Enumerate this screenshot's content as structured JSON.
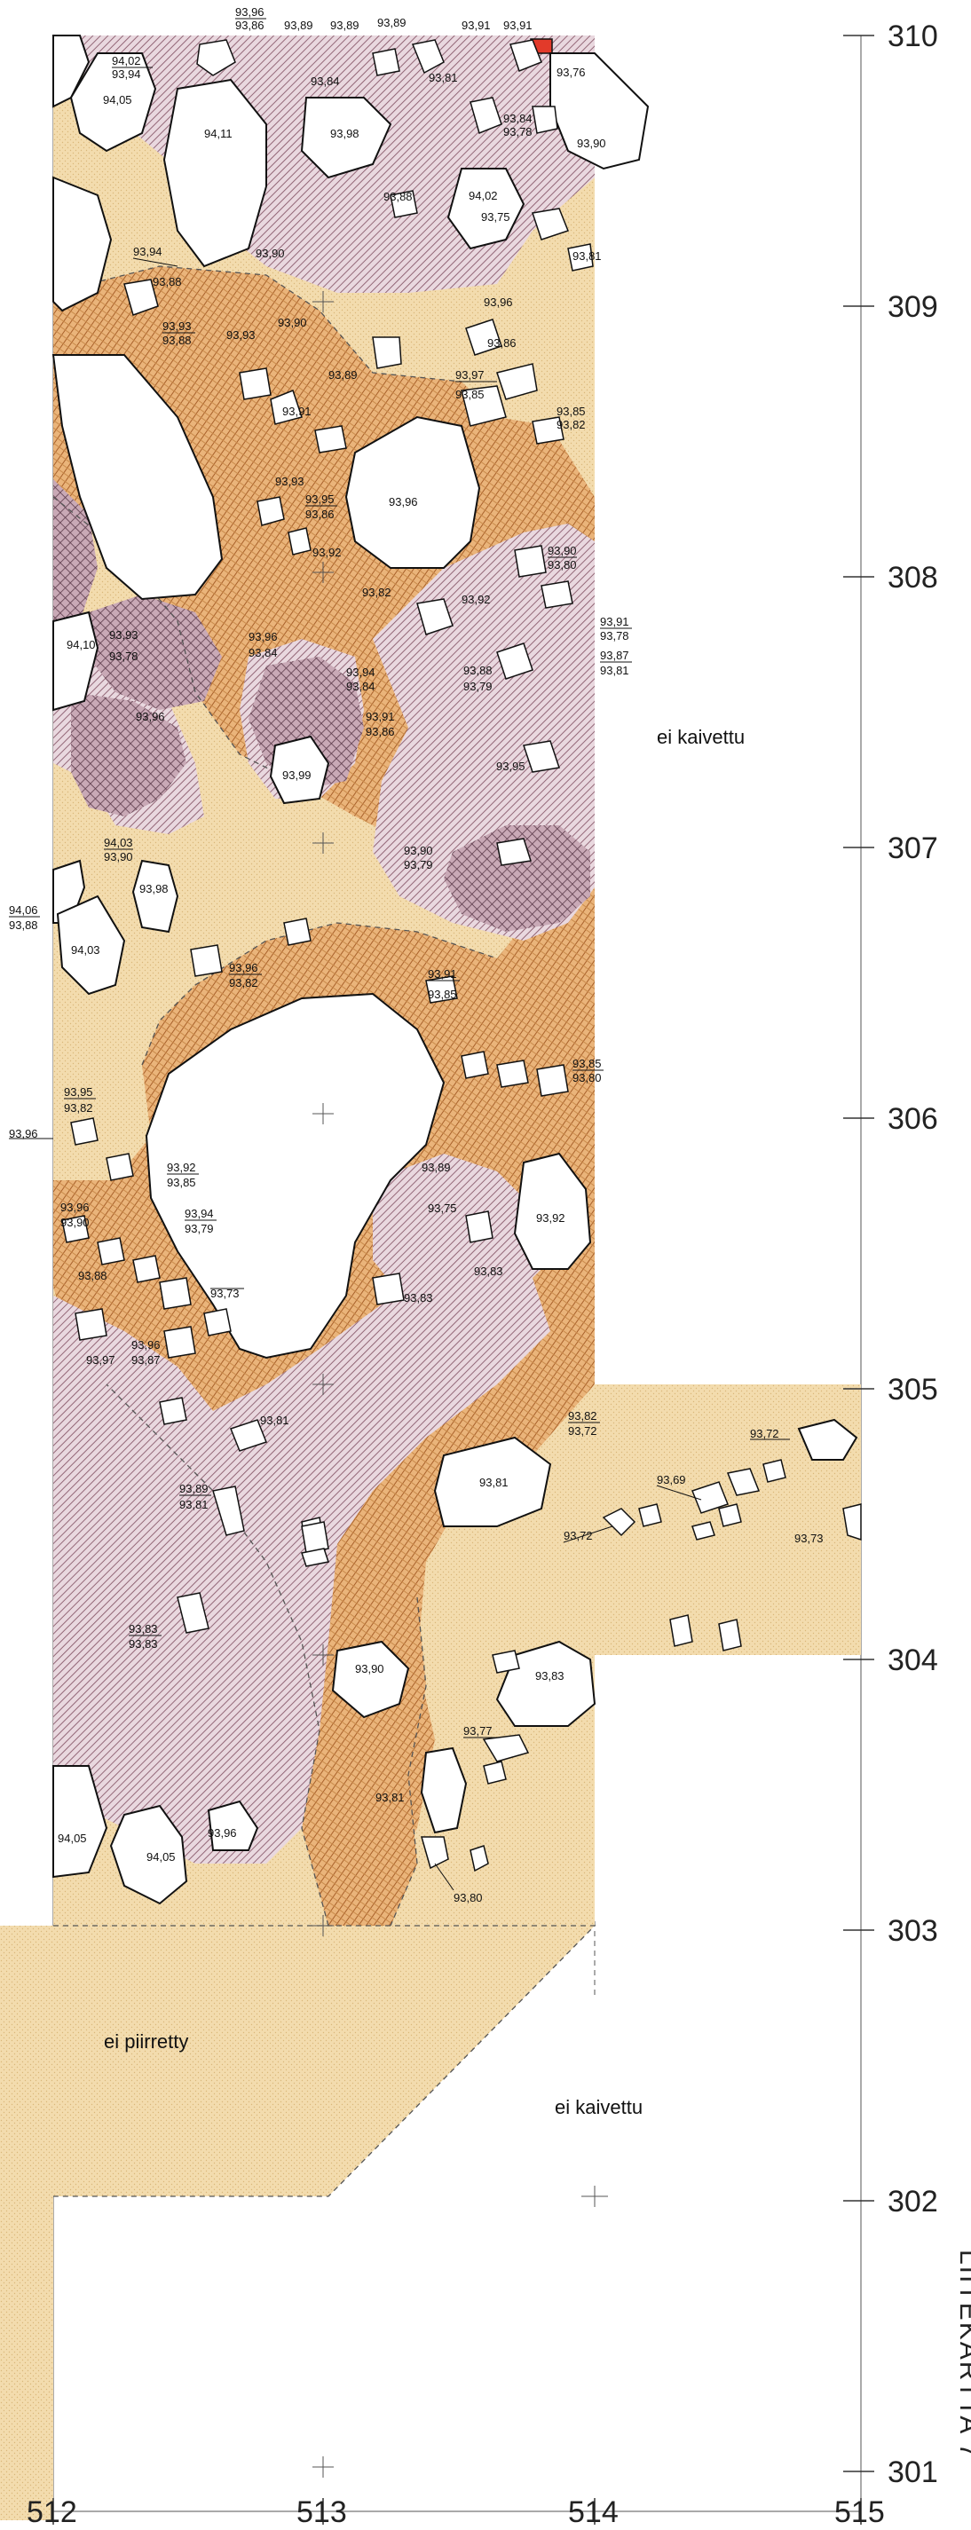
{
  "colors": {
    "sand": "#f3dcae",
    "brown_hatch": "#c98a4a",
    "purple_hatch": "#a37888",
    "dark_crosshatch": "#6f4c5c",
    "red_marker": "#e23a2a"
  },
  "axes": {
    "x_labels": [
      "512",
      "513",
      "514",
      "515"
    ],
    "y_labels": [
      "310",
      "309",
      "308",
      "307",
      "306",
      "305",
      "304",
      "303",
      "302",
      "301"
    ]
  },
  "notes": {
    "ei_kaivettu_top": "ei kaivettu",
    "ei_kaivettu_bottom": "ei kaivettu",
    "ei_piirretty": "ei piirretty",
    "side_title": "LIITEKARTTA 7"
  },
  "elevations": [
    "93,96",
    "93,86",
    "93,89",
    "93,89",
    "93,89",
    "93,91",
    "93,91",
    "94,02",
    "93,94",
    "94,05",
    "93,84",
    "93,81",
    "93,76",
    "94,11",
    "93,98",
    "93,84",
    "93,78",
    "93,90",
    "93,88",
    "94,02",
    "93,75",
    "93,90",
    "93,81",
    "93,94",
    "93,88",
    "93,93",
    "93,88",
    "93,93",
    "93,90",
    "93,96",
    "93,86",
    "93,89",
    "93,97",
    "93,85",
    "93,91",
    "93,85",
    "93,82",
    "93,93",
    "93,95",
    "93,86",
    "93,96",
    "93,92",
    "93,90",
    "93,80",
    "93,92",
    "93,82",
    "94,10",
    "93,93",
    "93,78",
    "93,96",
    "93,84",
    "93,91",
    "93,78",
    "93,94",
    "93,84",
    "93,88",
    "93,79",
    "93,87",
    "93,81",
    "93,96",
    "93,91",
    "93,86",
    "93,99",
    "93,95",
    "94,03",
    "93,90",
    "93,90",
    "93,79",
    "93,98",
    "94,06",
    "93,88",
    "94,03",
    "93,96",
    "93,82",
    "93,91",
    "93,85",
    "93,95",
    "93,82",
    "93,85",
    "93,80",
    "93,96",
    "93,92",
    "93,85",
    "93,94",
    "93,79",
    "93,89",
    "93,75",
    "93,96",
    "93,90",
    "93,92",
    "93,88",
    "93,83",
    "93,73",
    "93,83",
    "93,96",
    "93,97",
    "93,87",
    "93,81",
    "93,82",
    "93,72",
    "93,72",
    "93,81",
    "93,89",
    "93,81",
    "93,69",
    "93,72",
    "93,73",
    "93,83",
    "93,83",
    "93,90",
    "93,83",
    "93,77",
    "93,81",
    "94,05",
    "94,05",
    "93,96",
    "93,80"
  ]
}
